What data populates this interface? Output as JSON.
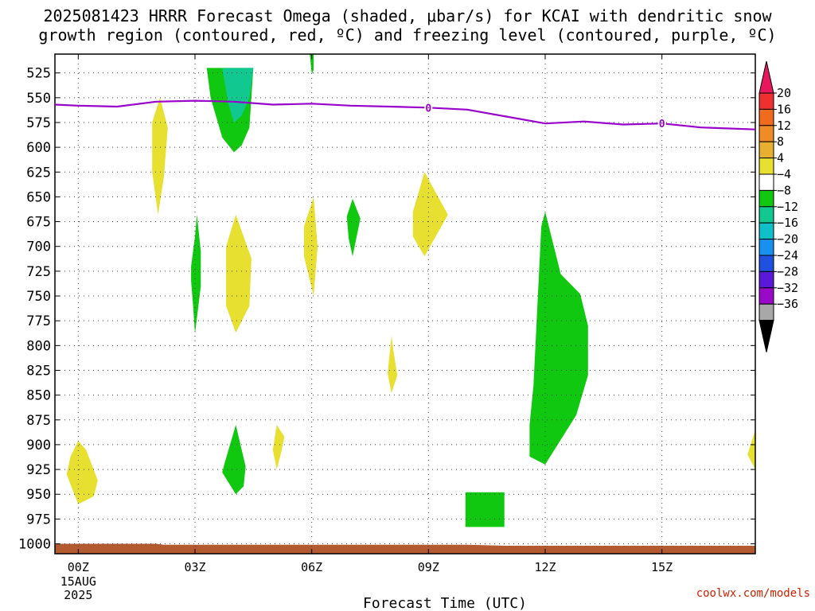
{
  "title": {
    "line1": "2025081423 HRRR Forecast Omega (shaded, μbar/s) for KCAI with dendritic snow",
    "line2": "growth region (contoured, red, ºC) and freezing level (contoured, purple, ºC)"
  },
  "credit": "coolwx.com/models",
  "chart_data": {
    "type": "contour",
    "xlabel": "Forecast Time (UTC)",
    "ylabel": "",
    "x_range_hours": [
      -0.6,
      17.4
    ],
    "y_range_hpa": [
      1010,
      506
    ],
    "x_ticks": [
      {
        "hour": 0,
        "label": "00Z",
        "sub": [
          "15AUG",
          "2025"
        ]
      },
      {
        "hour": 3,
        "label": "03Z"
      },
      {
        "hour": 6,
        "label": "06Z"
      },
      {
        "hour": 9,
        "label": "09Z"
      },
      {
        "hour": 12,
        "label": "12Z"
      },
      {
        "hour": 15,
        "label": "15Z"
      }
    ],
    "y_ticks": [
      525,
      550,
      575,
      600,
      625,
      650,
      675,
      700,
      725,
      750,
      775,
      800,
      825,
      850,
      875,
      900,
      925,
      950,
      975,
      1000
    ],
    "grid": true,
    "colorbar": {
      "levels": [
        20,
        16,
        12,
        8,
        4,
        -4,
        -8,
        -12,
        -16,
        -20,
        -24,
        -28,
        -32,
        -36
      ],
      "labels": [
        "20",
        "16",
        "12",
        "8",
        "4",
        "-4",
        "-8",
        "-12",
        "-16",
        "-20",
        "-24",
        "-28",
        "-32",
        "-36"
      ],
      "colors": [
        "#e8175d",
        "#f03030",
        "#f06a20",
        "#f08c28",
        "#e8b030",
        "#e8e030",
        "#ffffff",
        "#10c810",
        "#10c890",
        "#10c0c8",
        "#1890f0",
        "#2050e0",
        "#5a18d8",
        "#9a08c8",
        "#a8a8a8",
        "#000000"
      ]
    },
    "freezing_level": {
      "label": "0",
      "color": "#9900cc",
      "points": [
        [
          -0.6,
          557
        ],
        [
          0,
          558
        ],
        [
          1,
          559
        ],
        [
          2,
          554
        ],
        [
          3,
          553
        ],
        [
          4,
          554
        ],
        [
          5,
          557
        ],
        [
          6,
          556
        ],
        [
          7,
          558
        ],
        [
          8,
          559
        ],
        [
          9,
          560
        ],
        [
          10,
          562
        ],
        [
          11,
          569
        ],
        [
          12,
          576
        ],
        [
          13,
          574
        ],
        [
          14,
          577
        ],
        [
          15,
          576
        ],
        [
          16,
          580
        ],
        [
          17.4,
          582
        ]
      ],
      "label_hours": [
        9,
        15
      ]
    },
    "omega_regions": [
      {
        "value_band": "4 to 8",
        "color": "#e8e030",
        "points": [
          [
            -0.2,
            912
          ],
          [
            0,
            896
          ],
          [
            0.2,
            905
          ],
          [
            0.5,
            936
          ],
          [
            0.4,
            952
          ],
          [
            0,
            960
          ],
          [
            -0.3,
            930
          ]
        ]
      },
      {
        "value_band": "4 to 8",
        "color": "#e8e030",
        "points": [
          [
            1.9,
            575
          ],
          [
            2.1,
            550
          ],
          [
            2.3,
            580
          ],
          [
            2.2,
            630
          ],
          [
            2.05,
            668
          ],
          [
            1.9,
            625
          ]
        ]
      },
      {
        "value_band": "-8 to -4",
        "color": "#10c810",
        "points": [
          [
            2.9,
            720
          ],
          [
            3,
            690
          ],
          [
            3.05,
            668
          ],
          [
            3.15,
            705
          ],
          [
            3.15,
            740
          ],
          [
            3,
            788
          ],
          [
            2.95,
            760
          ],
          [
            2.9,
            735
          ]
        ]
      },
      {
        "value_band": "-8 to -4",
        "color": "#10c810",
        "points": [
          [
            3.3,
            520
          ],
          [
            4.5,
            520
          ],
          [
            4.4,
            580
          ],
          [
            4.2,
            598
          ],
          [
            4,
            605
          ],
          [
            3.7,
            590
          ],
          [
            3.4,
            550
          ]
        ]
      },
      {
        "value_band": "-12 to -8",
        "color": "#10c890",
        "points": [
          [
            3.7,
            520
          ],
          [
            4.5,
            520
          ],
          [
            4.4,
            550
          ],
          [
            4.2,
            568
          ],
          [
            4,
            575
          ],
          [
            3.85,
            555
          ]
        ]
      },
      {
        "value_band": "4 to 8",
        "color": "#e8e030",
        "points": [
          [
            3.8,
            700
          ],
          [
            4.05,
            668
          ],
          [
            4.45,
            712
          ],
          [
            4.4,
            760
          ],
          [
            4.05,
            787
          ],
          [
            3.8,
            760
          ]
        ]
      },
      {
        "value_band": "-8 to -4",
        "color": "#10c810",
        "points": [
          [
            3.75,
            920
          ],
          [
            4.05,
            880
          ],
          [
            4.3,
            922
          ],
          [
            4.25,
            942
          ],
          [
            4.05,
            950
          ],
          [
            3.7,
            928
          ]
        ]
      },
      {
        "value_band": "4 to 8",
        "color": "#e8e030",
        "points": [
          [
            5.1,
            880
          ],
          [
            5.3,
            892
          ],
          [
            5.2,
            910
          ],
          [
            5.1,
            925
          ],
          [
            5.0,
            905
          ]
        ]
      },
      {
        "value_band": "4 to 8",
        "color": "#e8e030",
        "points": [
          [
            5.8,
            680
          ],
          [
            6.05,
            650
          ],
          [
            6.15,
            700
          ],
          [
            6.05,
            750
          ],
          [
            5.8,
            710
          ]
        ]
      },
      {
        "value_band": "-8 to -4",
        "color": "#10c810",
        "points": [
          [
            5.95,
            506
          ],
          [
            6.05,
            506
          ],
          [
            6.05,
            522
          ],
          [
            6.0,
            526
          ]
        ]
      },
      {
        "value_band": "-8 to -4",
        "color": "#10c810",
        "points": [
          [
            6.9,
            670
          ],
          [
            7.05,
            652
          ],
          [
            7.25,
            672
          ],
          [
            7.05,
            710
          ],
          [
            6.95,
            692
          ]
        ]
      },
      {
        "value_band": "4 to 8",
        "color": "#e8e030",
        "points": [
          [
            8.05,
            790
          ],
          [
            8.1,
            805
          ],
          [
            8.2,
            830
          ],
          [
            8.05,
            848
          ],
          [
            7.95,
            828
          ]
        ]
      },
      {
        "value_band": "4 to 8",
        "color": "#e8e030",
        "points": [
          [
            8.6,
            665
          ],
          [
            8.9,
            625
          ],
          [
            9.5,
            668
          ],
          [
            8.9,
            710
          ],
          [
            8.6,
            690
          ]
        ]
      },
      {
        "value_band": "-8 to -4",
        "color": "#10c810",
        "points": [
          [
            11.9,
            680
          ],
          [
            12.0,
            665
          ],
          [
            12.4,
            728
          ],
          [
            12.9,
            748
          ],
          [
            13.1,
            780
          ],
          [
            13.1,
            830
          ],
          [
            12.8,
            870
          ],
          [
            12.0,
            920
          ],
          [
            11.6,
            912
          ],
          [
            11.6,
            880
          ],
          [
            11.7,
            840
          ],
          [
            11.8,
            760
          ]
        ]
      },
      {
        "value_band": "-8 to -4",
        "color": "#10c810",
        "points": [
          [
            9.95,
            948
          ],
          [
            10.95,
            948
          ],
          [
            10.95,
            983
          ],
          [
            9.95,
            983
          ]
        ]
      },
      {
        "value_band": "4 to 8",
        "color": "#e8e030",
        "points": [
          [
            17.4,
            885
          ],
          [
            17.4,
            925
          ],
          [
            17.2,
            910
          ]
        ]
      }
    ],
    "terrain": {
      "color": "#b35a30",
      "surface_hpa": [
        [
          -0.6,
          1000
        ],
        [
          2,
          1000
        ],
        [
          2.2,
          1001
        ],
        [
          10,
          1001
        ],
        [
          11,
          1002
        ],
        [
          17.4,
          1002
        ]
      ]
    }
  }
}
